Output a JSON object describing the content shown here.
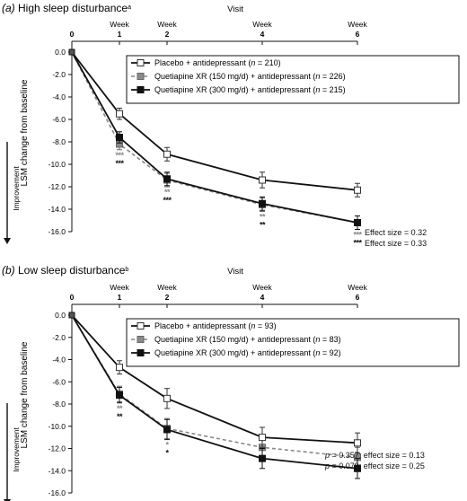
{
  "chart_data": [
    {
      "type": "line",
      "panel_label": "(a)",
      "title": "High sleep disturbance",
      "title_superscript": "a",
      "top_axis_label": "Visit",
      "x": [
        0,
        1,
        2,
        4,
        6
      ],
      "top_tick_labels": [
        {
          "week": "",
          "num": "0"
        },
        {
          "week": "Week",
          "num": "1"
        },
        {
          "week": "Week",
          "num": "2"
        },
        {
          "week": "Week",
          "num": "4"
        },
        {
          "week": "Week",
          "num": "6"
        }
      ],
      "ylabel": "LSM change from baseline",
      "arrow_label": "Improvement",
      "ylim": [
        -16,
        0
      ],
      "y_ticks": [
        "0.0",
        "-2.0",
        "-4.0",
        "-6.0",
        "-8.0",
        "-10.0",
        "-12.0",
        "-14.0",
        "-16.0"
      ],
      "series": [
        {
          "name": "Placebo + antidepressant",
          "n": "210",
          "style": "solid-open",
          "values": [
            0,
            -5.5,
            -9.1,
            -11.4,
            -12.3
          ],
          "err": [
            0,
            0.5,
            0.6,
            0.7,
            0.6
          ]
        },
        {
          "name": "Quetiapine XR (150 mg/d) + antidepressant",
          "n": "226",
          "style": "dashed-gray",
          "values": [
            0,
            -8.2,
            -11.4,
            -13.6,
            -15.2
          ],
          "err": [
            0,
            0.5,
            0.6,
            0.6,
            0.6
          ]
        },
        {
          "name": "Quetiapine XR (300 mg/d) + antidepressant",
          "n": "215",
          "style": "solid-filled",
          "values": [
            0,
            -7.6,
            -11.3,
            -13.5,
            -15.2
          ],
          "err": [
            0,
            0.5,
            0.6,
            0.6,
            0.6
          ]
        }
      ],
      "significance": [
        {
          "x": 1,
          "gray": "***",
          "black": "***"
        },
        {
          "x": 2,
          "gray": "**",
          "black": "***"
        },
        {
          "x": 4,
          "gray": "**",
          "black": "**"
        },
        {
          "x": 6,
          "gray": "***",
          "black": "***"
        }
      ],
      "effect_labels": [
        {
          "color": "gray",
          "text": "Effect size = 0.32"
        },
        {
          "color": "black",
          "text": "Effect size = 0.33"
        }
      ]
    },
    {
      "type": "line",
      "panel_label": "(b)",
      "title": "Low sleep disturbance",
      "title_superscript": "b",
      "top_axis_label": "Visit",
      "x": [
        0,
        1,
        2,
        4,
        6
      ],
      "top_tick_labels": [
        {
          "week": "",
          "num": "0"
        },
        {
          "week": "Week",
          "num": "1"
        },
        {
          "week": "Week",
          "num": "2"
        },
        {
          "week": "Week",
          "num": "4"
        },
        {
          "week": "Week",
          "num": "6"
        }
      ],
      "ylabel": "LSM change from baseline",
      "arrow_label": "Improvement",
      "ylim": [
        -16,
        0
      ],
      "y_ticks": [
        "0.0",
        "-2.0",
        "-4.0",
        "-6.0",
        "-8.0",
        "-10.0",
        "-12.0",
        "-14.0",
        "-16.0"
      ],
      "series": [
        {
          "name": "Placebo + antidepressant",
          "n": "93",
          "style": "solid-open",
          "values": [
            0,
            -4.7,
            -7.5,
            -11.0,
            -11.5
          ],
          "err": [
            0,
            0.6,
            0.9,
            0.9,
            0.9
          ]
        },
        {
          "name": "Quetiapine XR (150 mg/d) + antidepressant",
          "n": "83",
          "style": "dashed-gray",
          "values": [
            0,
            -7.1,
            -10.2,
            -11.9,
            -12.8
          ],
          "err": [
            0,
            0.7,
            0.9,
            0.9,
            0.9
          ]
        },
        {
          "name": "Quetiapine XR (300 mg/d) + antidepressant",
          "n": "92",
          "style": "solid-filled",
          "values": [
            0,
            -7.2,
            -10.3,
            -12.9,
            -13.8
          ],
          "err": [
            0,
            0.7,
            0.9,
            0.9,
            0.9
          ]
        }
      ],
      "significance": [
        {
          "x": 1,
          "gray": "**",
          "black": "**"
        },
        {
          "x": 2,
          "gray": "*",
          "black": "*"
        }
      ],
      "effect_labels": [
        {
          "color": "gray",
          "text": "p = 0.357; effect size = 0.13"
        },
        {
          "color": "black",
          "text": "p = 0.079; effect size = 0.25"
        }
      ]
    }
  ]
}
